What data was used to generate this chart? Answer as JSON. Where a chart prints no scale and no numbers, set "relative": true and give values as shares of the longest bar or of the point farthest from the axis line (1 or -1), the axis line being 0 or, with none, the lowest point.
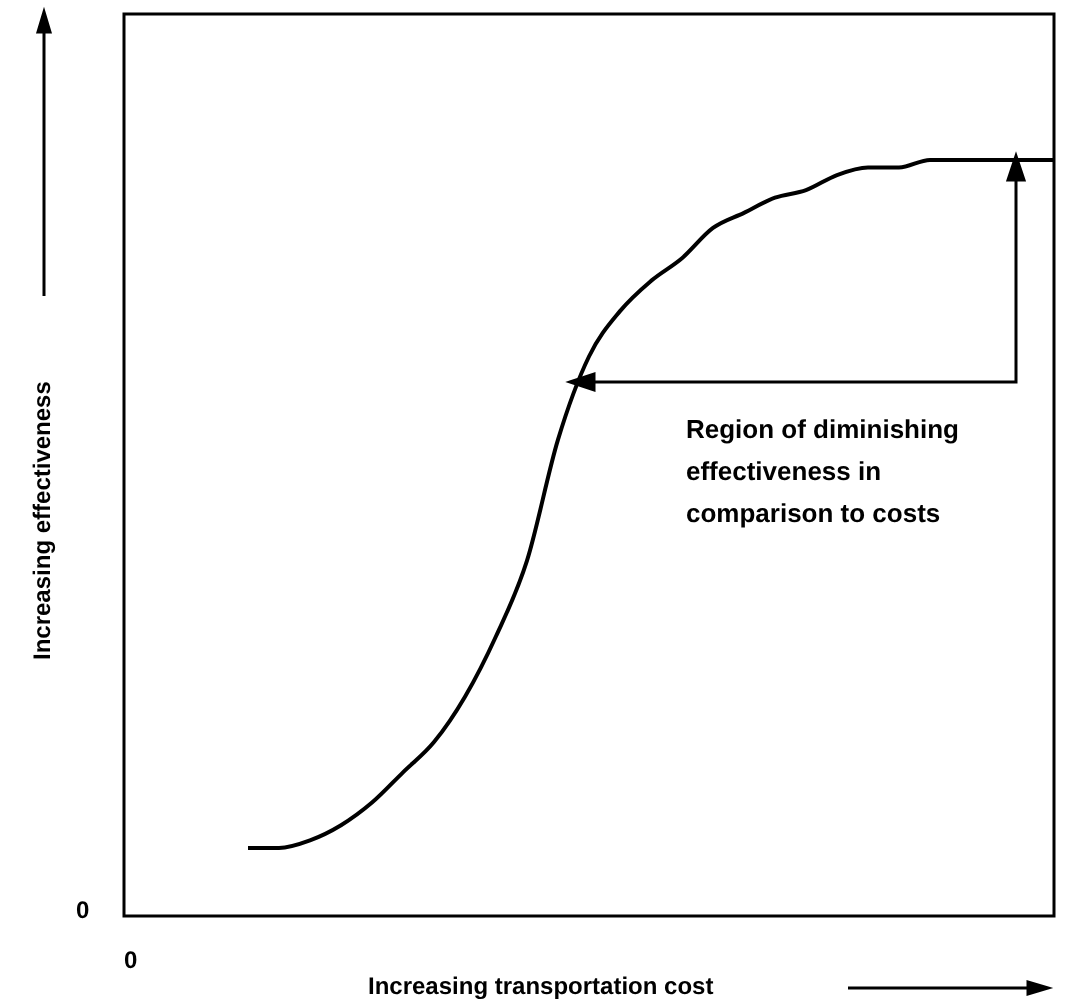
{
  "chart_data": {
    "type": "line",
    "relative": true,
    "xlabel": "Increasing transportation cost",
    "ylabel": "Increasing effectiveness",
    "annotations": [
      "0",
      "0",
      "Region of diminishing effectiveness in comparison to costs"
    ],
    "categories": [
      null,
      null,
      null,
      null,
      null,
      null,
      null,
      null,
      null,
      null,
      null,
      null,
      null,
      null,
      null,
      null,
      null,
      null,
      null,
      null,
      null,
      null,
      null,
      null,
      null,
      null,
      null,
      null,
      null,
      null,
      null
    ],
    "series": [
      {
        "color": "#000000",
        "values": [
          null,
          null,
          null,
          null,
          0.09,
          0.09,
          0.1,
          0.12,
          0.15,
          0.19,
          0.23,
          0.29,
          0.37,
          0.47,
          0.63,
          0.74,
          0.8,
          0.84,
          0.87,
          0.91,
          0.93,
          0.95,
          0.96,
          0.98,
          0.99,
          0.99,
          1.0,
          1.0,
          1.0,
          1.0,
          1.0
        ]
      }
    ]
  }
}
